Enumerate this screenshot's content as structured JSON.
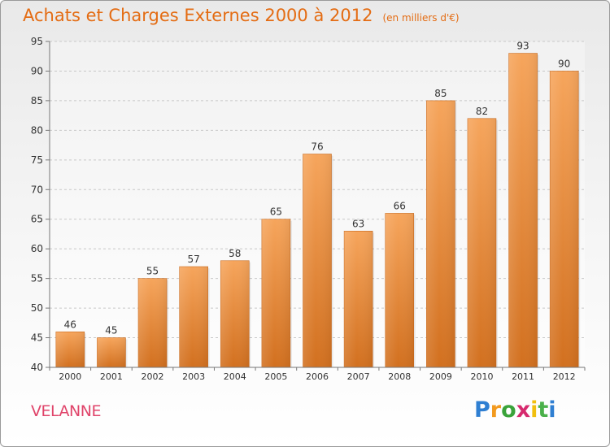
{
  "header": {
    "title": "Achats et Charges Externes 2000 à 2012",
    "unit": "(en milliers d'€)"
  },
  "footer": {
    "commune": "VELANNE",
    "logo_text": "Proxiti"
  },
  "colors": {
    "title": "#e46c13",
    "bar_light": "#f6a35a",
    "bar_dark": "#d76f1d",
    "commune": "#e0446a"
  },
  "chart_data": {
    "type": "bar",
    "title": "Achats et Charges Externes 2000 à 2012",
    "subtitle": "(en milliers d'€)",
    "categories": [
      "2000",
      "2001",
      "2002",
      "2003",
      "2004",
      "2005",
      "2006",
      "2007",
      "2008",
      "2009",
      "2010",
      "2011",
      "2012"
    ],
    "values": [
      46,
      45,
      55,
      57,
      58,
      65,
      76,
      63,
      66,
      85,
      82,
      93,
      90
    ],
    "ylim": [
      40,
      95
    ],
    "yticks": [
      40,
      45,
      50,
      55,
      60,
      65,
      70,
      75,
      80,
      85,
      90,
      95
    ],
    "grid": true
  }
}
